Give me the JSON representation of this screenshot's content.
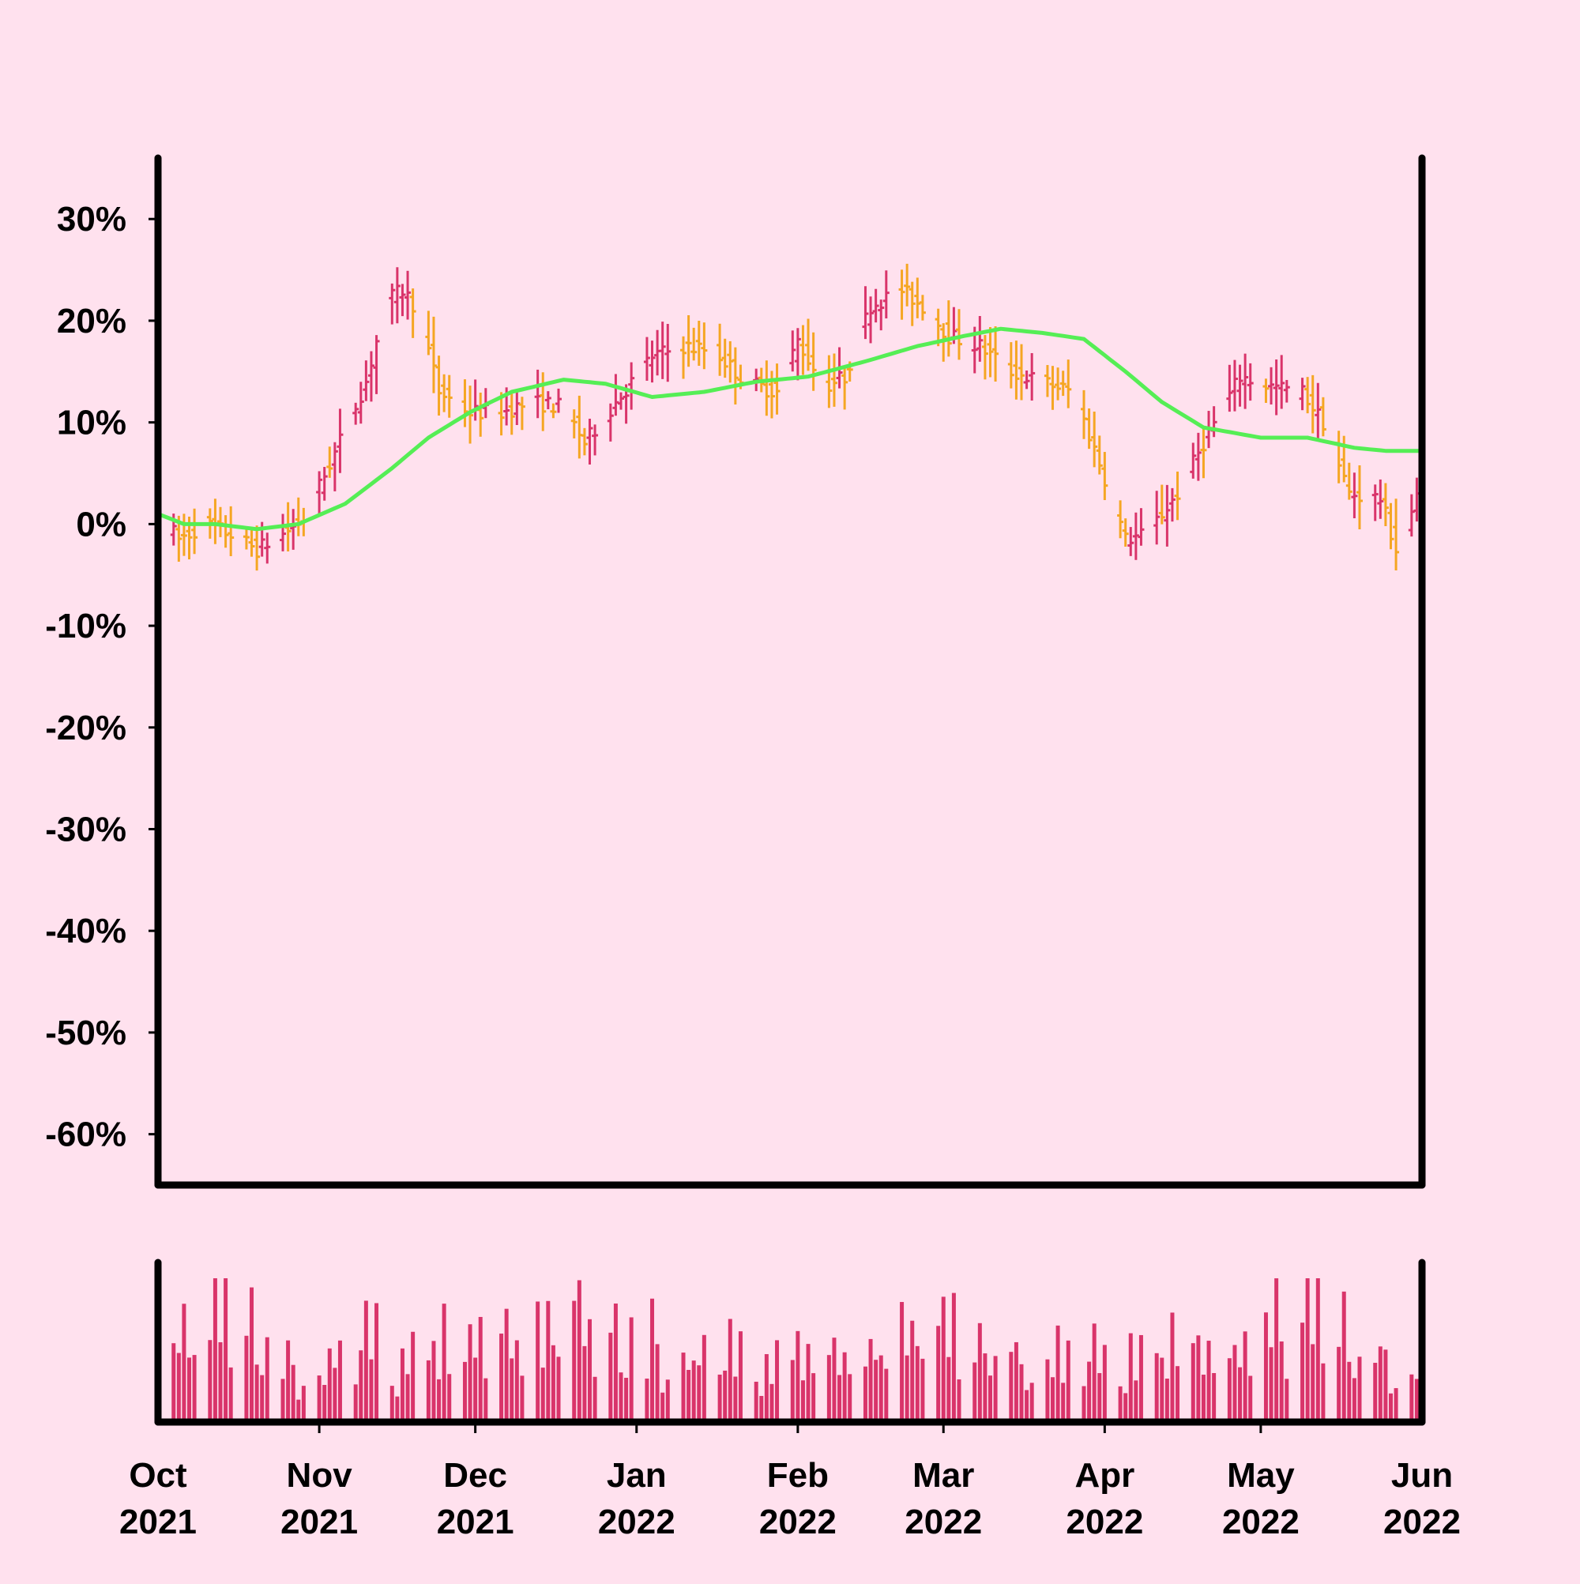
{
  "chart_data": {
    "type": "ohlc",
    "colors": {
      "background": "#ffe1ee",
      "up": "#d9346a",
      "down": "#f5a623",
      "moving_average": "#55ee55",
      "volume": "#d9346a",
      "axis": "#000000"
    },
    "y_axis": {
      "range": [
        -65,
        36
      ],
      "unit": "%",
      "ticks": [
        30,
        20,
        10,
        0,
        -10,
        -20,
        -30,
        -40,
        -50,
        -60
      ],
      "tick_labels": [
        "30%",
        "20%",
        "10%",
        "0%",
        "-10%",
        "-20%",
        "-30%",
        "-40%",
        "-50%",
        "-60%"
      ]
    },
    "x_axis": {
      "range": [
        "2021-10-01",
        "2022-06-01"
      ],
      "ticks": [
        "2021-11-01",
        "2021-12-01",
        "2022-01-01",
        "2022-02-01",
        "2022-03-01",
        "2022-04-01",
        "2022-05-01"
      ],
      "tick_labels": [
        {
          "month": "Oct",
          "year": "2021"
        },
        {
          "month": "Nov",
          "year": "2021"
        },
        {
          "month": "Dec",
          "year": "2021"
        },
        {
          "month": "Jan",
          "year": "2022"
        },
        {
          "month": "Feb",
          "year": "2022"
        },
        {
          "month": "Mar",
          "year": "2022"
        },
        {
          "month": "Apr",
          "year": "2022"
        },
        {
          "month": "May",
          "year": "2022"
        },
        {
          "month": "Jun",
          "year": "2022"
        }
      ]
    },
    "price_path": [
      [
        "2021-10-01",
        1
      ],
      [
        "2021-10-05",
        -1.5
      ],
      [
        "2021-10-10",
        0
      ],
      [
        "2021-10-15",
        -1
      ],
      [
        "2021-10-20",
        -2.5
      ],
      [
        "2021-10-25",
        -1
      ],
      [
        "2021-10-29",
        0.5
      ],
      [
        "2021-11-04",
        7
      ],
      [
        "2021-11-10",
        14
      ],
      [
        "2021-11-14",
        22
      ],
      [
        "2021-11-17",
        23
      ],
      [
        "2021-11-20",
        21
      ],
      [
        "2021-11-24",
        13
      ],
      [
        "2021-11-30",
        11
      ],
      [
        "2021-12-06",
        11
      ],
      [
        "2021-12-12",
        12
      ],
      [
        "2021-12-18",
        11.5
      ],
      [
        "2021-12-22",
        8
      ],
      [
        "2021-12-28",
        12
      ],
      [
        "2022-01-04",
        16.5
      ],
      [
        "2022-01-10",
        17.5
      ],
      [
        "2022-01-16",
        17
      ],
      [
        "2022-01-22",
        14
      ],
      [
        "2022-01-28",
        13
      ],
      [
        "2022-02-01",
        18
      ],
      [
        "2022-02-06",
        13.5
      ],
      [
        "2022-02-10",
        14.5
      ],
      [
        "2022-02-15",
        21.5
      ],
      [
        "2022-02-21",
        23
      ],
      [
        "2022-02-26",
        21
      ],
      [
        "2022-03-02",
        18.5
      ],
      [
        "2022-03-08",
        17.5
      ],
      [
        "2022-03-14",
        15
      ],
      [
        "2022-03-20",
        14
      ],
      [
        "2022-03-26",
        13
      ],
      [
        "2022-03-31",
        6
      ],
      [
        "2022-04-05",
        -1.5
      ],
      [
        "2022-04-09",
        -1
      ],
      [
        "2022-04-15",
        3
      ],
      [
        "2022-04-21",
        9
      ],
      [
        "2022-04-27",
        14.5
      ],
      [
        "2022-05-03",
        13.5
      ],
      [
        "2022-05-09",
        13
      ],
      [
        "2022-05-13",
        10
      ],
      [
        "2022-05-18",
        3
      ],
      [
        "2022-05-24",
        2.5
      ],
      [
        "2022-05-27",
        -2.5
      ],
      [
        "2022-05-31",
        2.5
      ]
    ],
    "moving_average": [
      [
        "2021-10-01",
        1
      ],
      [
        "2021-10-06",
        0
      ],
      [
        "2021-10-12",
        0
      ],
      [
        "2021-10-20",
        -0.5
      ],
      [
        "2021-10-28",
        0
      ],
      [
        "2021-11-06",
        2
      ],
      [
        "2021-11-15",
        5.5
      ],
      [
        "2021-11-22",
        8.5
      ],
      [
        "2021-11-30",
        11
      ],
      [
        "2021-12-08",
        13
      ],
      [
        "2021-12-18",
        14.2
      ],
      [
        "2021-12-26",
        13.8
      ],
      [
        "2022-01-04",
        12.5
      ],
      [
        "2022-01-14",
        13
      ],
      [
        "2022-01-24",
        14
      ],
      [
        "2022-02-03",
        14.5
      ],
      [
        "2022-02-14",
        16
      ],
      [
        "2022-02-24",
        17.5
      ],
      [
        "2022-03-05",
        18.5
      ],
      [
        "2022-03-12",
        19.2
      ],
      [
        "2022-03-20",
        18.8
      ],
      [
        "2022-03-28",
        18.2
      ],
      [
        "2022-04-05",
        15
      ],
      [
        "2022-04-12",
        12
      ],
      [
        "2022-04-20",
        9.5
      ],
      [
        "2022-05-01",
        8.5
      ],
      [
        "2022-05-10",
        8.5
      ],
      [
        "2022-05-19",
        7.5
      ],
      [
        "2022-05-25",
        7.2
      ],
      [
        "2022-06-01",
        7.2
      ]
    ],
    "volume_relative": [
      0.7,
      0.45,
      0.85,
      0.55,
      0.4,
      0.75,
      0.9,
      0.5,
      0.95,
      0.35,
      0.55,
      0.8,
      0.45,
      0.3,
      0.6,
      0.4,
      0.7,
      0.5,
      0.2,
      0.25,
      0.4,
      0.3,
      0.55,
      0.35,
      0.65,
      0.3,
      0.45,
      0.75,
      0.4,
      0.7,
      0.3,
      0.2,
      0.5,
      0.35,
      0.6,
      0.45,
      0.55,
      0.25,
      0.7,
      0.35,
      0.45,
      0.55,
      0.4,
      0.6,
      0.35,
      0.5,
      0.65,
      0.4,
      0.55,
      0.3
    ]
  }
}
